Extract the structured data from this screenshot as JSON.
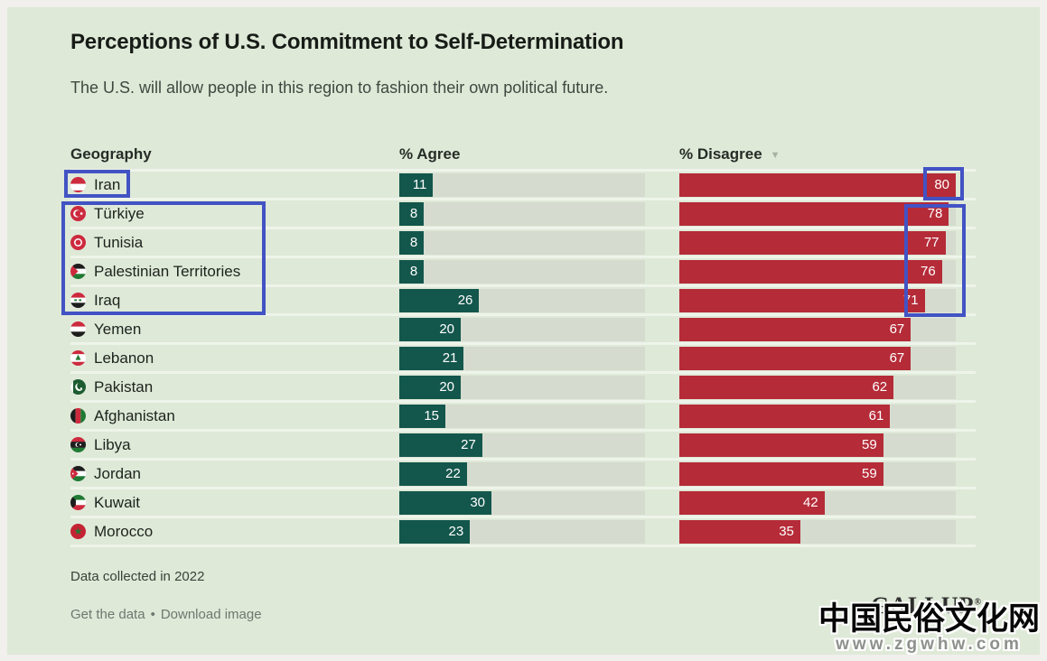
{
  "header": {
    "title": "Perceptions of U.S. Commitment to Self-Determination",
    "subtitle": "The U.S. will allow people in this region to fashion their own political future."
  },
  "table_headers": {
    "geography": "Geography",
    "agree": "% Agree",
    "disagree": "% Disagree",
    "sort_indicator": "▼"
  },
  "chart_data": {
    "type": "bar",
    "orientation": "horizontal",
    "title": "Perceptions of U.S. Commitment to Self-Determination",
    "subtitle": "The U.S. will allow people in this region to fashion their own political future.",
    "categories": [
      "Iran",
      "Türkiye",
      "Tunisia",
      "Palestinian Territories",
      "Iraq",
      "Yemen",
      "Lebanon",
      "Pakistan",
      "Afghanistan",
      "Libya",
      "Jordan",
      "Kuwait",
      "Morocco"
    ],
    "flags": [
      "iran",
      "turkiye",
      "tunisia",
      "palestinian-territories",
      "iraq",
      "yemen",
      "lebanon",
      "pakistan",
      "afghanistan",
      "libya",
      "jordan",
      "kuwait",
      "morocco"
    ],
    "series": [
      {
        "name": "% Agree",
        "color": "#13564c",
        "values": [
          11,
          8,
          8,
          8,
          26,
          20,
          21,
          20,
          15,
          27,
          22,
          30,
          23
        ]
      },
      {
        "name": "% Disagree",
        "color": "#b52b38",
        "values": [
          80,
          78,
          77,
          76,
          71,
          67,
          67,
          62,
          61,
          59,
          59,
          42,
          35
        ]
      }
    ],
    "axis_max": 80,
    "sorted_by": "% Disagree descending",
    "grid": false,
    "legend": false
  },
  "annotations": {
    "highlight_color": "#4253c4",
    "boxes": [
      {
        "target": "geography label: Iran"
      },
      {
        "target": "geography labels: Türkiye, Tunisia, Palestinian Territories, Iraq"
      },
      {
        "target": "disagree value 80 (Iran)"
      },
      {
        "target": "disagree values 78, 77, 76, 71 (Türkiye–Iraq)"
      }
    ]
  },
  "footer": {
    "note": "Data collected in 2022",
    "get_data_label": "Get the data",
    "separator": "•",
    "download_label": "Download image",
    "brand": "GALLUP",
    "brand_mark": "®"
  },
  "watermark": {
    "line1": "中国民俗文化网",
    "line2": "www.zgwhw.com"
  },
  "colors": {
    "card_background": "#dfe9d8",
    "page_border": "#f1f0ec",
    "track": "#d5dbce",
    "agree_bar": "#13564c",
    "disagree_bar": "#b52b38",
    "highlight": "#4253c4"
  }
}
